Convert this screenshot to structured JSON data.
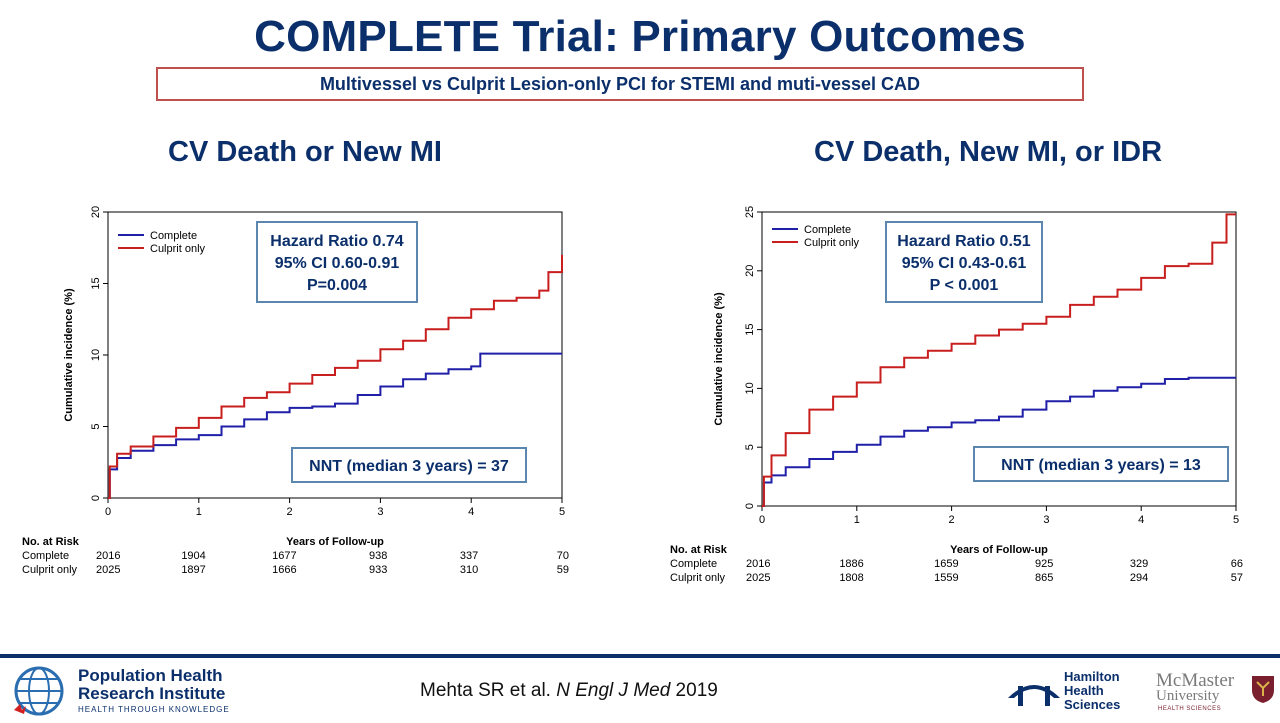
{
  "slide": {
    "title": "COMPLETE Trial: Primary Outcomes",
    "subtitle": "Multivessel vs Culprit Lesion-only PCI for STEMI and muti-vessel CAD",
    "citation_prefix": "Mehta SR et al. ",
    "citation_journal": "N Engl J Med",
    "citation_year": " 2019"
  },
  "colors": {
    "title": "#0b2f6b",
    "complete": "#1f1fa8",
    "culprit": "#c81e1e",
    "subtitle_border": "#c0504d",
    "box_border": "#5b86b0"
  },
  "logos": {
    "phri": {
      "line1": "Population Health",
      "line2": "Research Institute",
      "tagline": "HEALTH THROUGH KNOWLEDGE"
    },
    "hhs": {
      "line1": "Hamilton",
      "line2": "Health",
      "line3": "Sciences"
    },
    "mcmaster": {
      "line1": "McMaster",
      "line2": "University",
      "tagline": "HEALTH SCIENCES"
    }
  },
  "chart_data": [
    {
      "type": "line",
      "title": "CV Death or New MI",
      "xlabel": "Years of Follow-up",
      "ylabel": "Cumulative incidence (%)",
      "xlim": [
        0,
        5
      ],
      "ylim": [
        0,
        20
      ],
      "xticks": [
        "0",
        "1",
        "2",
        "3",
        "4",
        "5"
      ],
      "yticks": [
        "0",
        "5",
        "10",
        "15",
        "20"
      ],
      "legend": {
        "placement": "top-left",
        "entries": [
          "Complete",
          "Culprit only"
        ]
      },
      "stats_box": [
        "Hazard Ratio 0.74",
        "95% CI 0.60-0.91",
        "P=0.004"
      ],
      "nnt_box": "NNT (median 3 years) = 37",
      "series": [
        {
          "name": "Complete",
          "x": [
            0,
            0.02,
            0.1,
            0.25,
            0.5,
            0.75,
            1,
            1.25,
            1.5,
            1.75,
            2,
            2.25,
            2.5,
            2.75,
            3,
            3.25,
            3.5,
            3.75,
            4,
            4.1,
            4.5,
            5
          ],
          "y": [
            0,
            2.0,
            2.8,
            3.3,
            3.7,
            4.1,
            4.4,
            5.0,
            5.5,
            6.0,
            6.3,
            6.4,
            6.6,
            7.2,
            7.8,
            8.3,
            8.7,
            9.0,
            9.2,
            10.1,
            10.1,
            10.1
          ]
        },
        {
          "name": "Culprit only",
          "x": [
            0,
            0.02,
            0.1,
            0.25,
            0.5,
            0.75,
            1,
            1.25,
            1.5,
            1.75,
            2,
            2.25,
            2.5,
            2.75,
            3,
            3.25,
            3.5,
            3.75,
            4,
            4.25,
            4.5,
            4.75,
            4.85,
            5
          ],
          "y": [
            0,
            2.2,
            3.1,
            3.6,
            4.3,
            4.9,
            5.6,
            6.4,
            7.0,
            7.4,
            8.0,
            8.6,
            9.1,
            9.6,
            10.4,
            11.0,
            11.8,
            12.6,
            13.2,
            13.8,
            14.0,
            14.5,
            15.8,
            17.0
          ]
        }
      ],
      "at_risk": {
        "label": "No. at Risk",
        "rows": [
          {
            "name": "Complete",
            "values": [
              "2016",
              "1904",
              "1677",
              "938",
              "337",
              "70"
            ]
          },
          {
            "name": "Culprit only",
            "values": [
              "2025",
              "1897",
              "1666",
              "933",
              "310",
              "59"
            ]
          }
        ]
      }
    },
    {
      "type": "line",
      "title": "CV Death, New MI, or IDR",
      "xlabel": "Years of Follow-up",
      "ylabel": "Cumulative incidence (%)",
      "xlim": [
        0,
        5
      ],
      "ylim": [
        0,
        25
      ],
      "xticks": [
        "0",
        "1",
        "2",
        "3",
        "4",
        "5"
      ],
      "yticks": [
        "0",
        "5",
        "10",
        "15",
        "20",
        "25"
      ],
      "legend": {
        "placement": "top-left",
        "entries": [
          "Complete",
          "Culprit only"
        ]
      },
      "stats_box": [
        "Hazard Ratio 0.51",
        "95% CI 0.43-0.61",
        "P < 0.001"
      ],
      "nnt_box": "NNT (median 3 years) = 13",
      "series": [
        {
          "name": "Complete",
          "x": [
            0,
            0.02,
            0.1,
            0.25,
            0.5,
            0.75,
            1,
            1.25,
            1.5,
            1.75,
            2,
            2.25,
            2.5,
            2.75,
            3,
            3.25,
            3.5,
            3.75,
            4,
            4.25,
            4.5,
            4.75,
            5
          ],
          "y": [
            0,
            2.0,
            2.6,
            3.3,
            4.0,
            4.6,
            5.2,
            5.9,
            6.4,
            6.7,
            7.1,
            7.3,
            7.6,
            8.2,
            8.9,
            9.3,
            9.8,
            10.1,
            10.4,
            10.8,
            10.9,
            10.9,
            10.9
          ]
        },
        {
          "name": "Culprit only",
          "x": [
            0,
            0.02,
            0.1,
            0.25,
            0.5,
            0.75,
            1,
            1.25,
            1.5,
            1.75,
            2,
            2.25,
            2.5,
            2.75,
            3,
            3.25,
            3.5,
            3.75,
            4,
            4.25,
            4.5,
            4.75,
            4.9,
            5
          ],
          "y": [
            0,
            2.5,
            4.3,
            6.2,
            8.2,
            9.3,
            10.5,
            11.8,
            12.6,
            13.2,
            13.8,
            14.5,
            15.0,
            15.5,
            16.1,
            17.1,
            17.8,
            18.4,
            19.4,
            20.4,
            20.6,
            22.4,
            24.8,
            24.8
          ]
        }
      ],
      "at_risk": {
        "label": "No. at Risk",
        "rows": [
          {
            "name": "Complete",
            "values": [
              "2016",
              "1886",
              "1659",
              "925",
              "329",
              "66"
            ]
          },
          {
            "name": "Culprit only",
            "values": [
              "2025",
              "1808",
              "1559",
              "865",
              "294",
              "57"
            ]
          }
        ]
      }
    }
  ]
}
